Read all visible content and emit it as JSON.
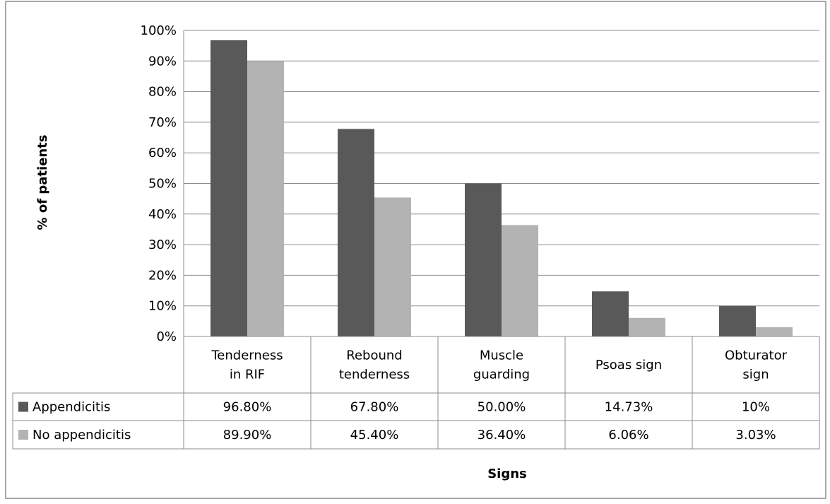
{
  "chart_data": {
    "type": "bar",
    "categories": [
      [
        "Tenderness",
        "in RIF"
      ],
      [
        "Rebound",
        "tenderness"
      ],
      [
        "Muscle",
        "guarding"
      ],
      [
        "Psoas sign"
      ],
      [
        "Obturator",
        "sign"
      ]
    ],
    "series": [
      {
        "name": "Appendicitis",
        "values": [
          96.8,
          67.8,
          50.0,
          14.73,
          10
        ],
        "labels": [
          "96.80%",
          "67.80%",
          "50.00%",
          "14.73%",
          "10%"
        ],
        "color": "#595959"
      },
      {
        "name": "No appendicitis",
        "values": [
          89.9,
          45.4,
          36.4,
          6.06,
          3.03
        ],
        "labels": [
          "89.90%",
          "45.40%",
          "36.40%",
          "6.06%",
          "3.03%"
        ],
        "color": "#b3b3b3"
      }
    ],
    "xlabel": "Signs",
    "ylabel": "% of patients",
    "ylim": [
      0,
      100
    ],
    "yticks": [
      "0%",
      "10%",
      "20%",
      "30%",
      "40%",
      "50%",
      "60%",
      "70%",
      "80%",
      "90%",
      "100%"
    ],
    "grid": true,
    "legend": "data-table"
  }
}
